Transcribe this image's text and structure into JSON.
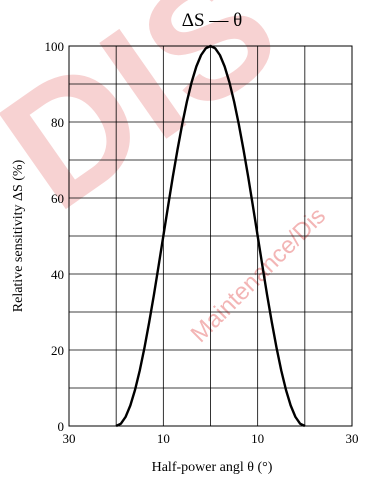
{
  "chart_data": {
    "type": "line",
    "title": "ΔS — θ",
    "xlabel": "Half-power angl  θ  (°)",
    "ylabel": "Relative sensitivity  ΔS  (%)",
    "xlim": [
      -30,
      30
    ],
    "ylim": [
      0,
      100
    ],
    "x_tick_labels": [
      "30",
      "10",
      "10",
      "30"
    ],
    "y_tick_labels": [
      "0",
      "20",
      "40",
      "60",
      "80",
      "100"
    ],
    "grid": true,
    "series": [
      {
        "x": [
          -20,
          -19,
          -18,
          -17,
          -16,
          -15,
          -14,
          -13,
          -12,
          -11,
          -10,
          -9,
          -8,
          -7,
          -6,
          -5,
          -4,
          -3,
          -2,
          -1,
          0,
          1,
          2,
          3,
          4,
          5,
          6,
          7,
          8,
          9,
          10,
          11,
          12,
          13,
          14,
          15,
          16,
          17,
          18,
          19,
          20
        ],
        "values": [
          0,
          0.6,
          2.4,
          5.4,
          9.5,
          14.6,
          20.6,
          27.3,
          34.5,
          42.2,
          50,
          57.8,
          65.5,
          72.7,
          79.4,
          85.4,
          90.5,
          94.6,
          97.6,
          99.4,
          100,
          99.4,
          97.6,
          94.6,
          90.5,
          85.4,
          79.4,
          72.7,
          65.5,
          57.8,
          50,
          42.2,
          34.5,
          27.3,
          20.6,
          14.6,
          9.5,
          5.4,
          2.4,
          0.6,
          0
        ]
      }
    ]
  },
  "watermark": {
    "big_text": "DIS",
    "small_text": "Maintenance/Dis",
    "color": "#f3b5b5"
  }
}
